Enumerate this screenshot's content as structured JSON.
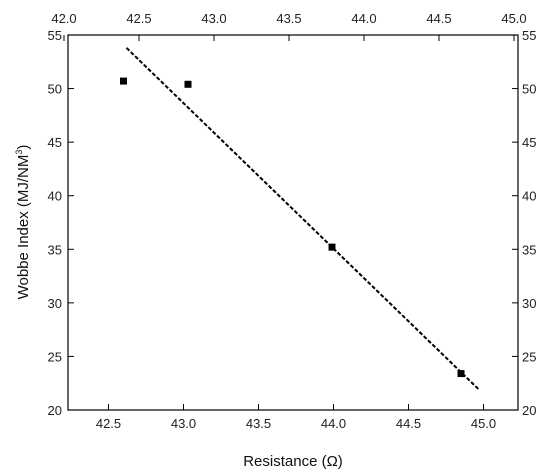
{
  "chart_data": {
    "type": "scatter",
    "xlabel": "Resistance (Ω)",
    "ylabel_main": "Wobbe Index (MJ/NM",
    "ylabel_sup": "3",
    "ylabel_close": ")",
    "xlim": [
      42.23,
      45.23
    ],
    "ylim": [
      20,
      55
    ],
    "bottom_x_ticks": [
      "42.5",
      "43.0",
      "43.5",
      "44.0",
      "44.5",
      "45.0"
    ],
    "top_x_ticks": [
      "42.0",
      "42.5",
      "43.0",
      "43.5",
      "44.0",
      "44.5",
      "45.0"
    ],
    "y_ticks": [
      "20",
      "25",
      "30",
      "35",
      "40",
      "45",
      "50",
      "55"
    ],
    "right_y_ticks": [
      "20",
      "25",
      "30",
      "35",
      "40",
      "45",
      "50",
      "55"
    ],
    "points": [
      {
        "x": 42.6,
        "y": 50.7
      },
      {
        "x": 43.03,
        "y": 50.4
      },
      {
        "x": 43.99,
        "y": 35.2
      },
      {
        "x": 44.85,
        "y": 23.4
      }
    ],
    "fit_line": {
      "x": [
        42.62,
        44.97
      ],
      "y": [
        53.8,
        21.9
      ],
      "style": "dashed"
    },
    "grid": false,
    "legend": "none",
    "marker": "square",
    "color": "#000000"
  }
}
